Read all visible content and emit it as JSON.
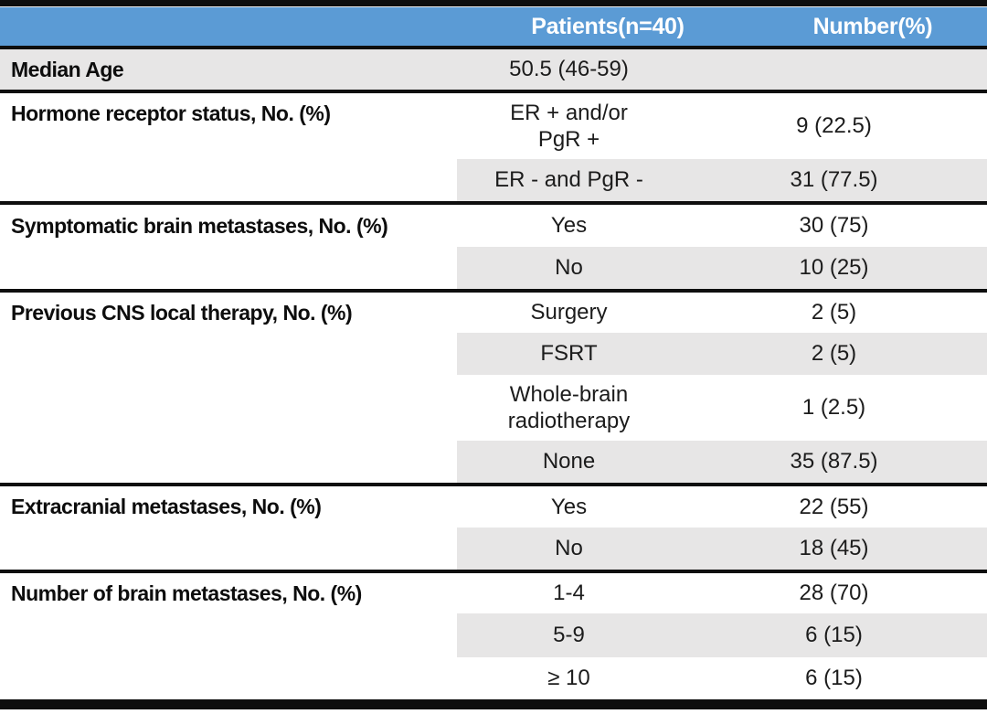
{
  "table": {
    "header": {
      "patients": "Patients(n=40)",
      "number": "Number(%)"
    },
    "rows": [
      {
        "label": "Median Age",
        "patients": "50.5 (46-59)",
        "number": ""
      },
      {
        "label": "Hormone receptor status, No. (%)",
        "patients": "ER + and/or\nPgR +",
        "number": "9 (22.5)"
      },
      {
        "label": "",
        "patients": "ER - and PgR -",
        "number": "31 (77.5)"
      },
      {
        "label": "Symptomatic brain metastases, No. (%)",
        "patients": "Yes",
        "number": "30 (75)"
      },
      {
        "label": "",
        "patients": "No",
        "number": "10 (25)"
      },
      {
        "label": "Previous CNS local therapy, No. (%)",
        "patients": "Surgery",
        "number": "2 (5)"
      },
      {
        "label": "",
        "patients": "FSRT",
        "number": "2 (5)"
      },
      {
        "label": "",
        "patients": "Whole-brain\nradiotherapy",
        "number": "1 (2.5)"
      },
      {
        "label": "",
        "patients": "None",
        "number": "35 (87.5)"
      },
      {
        "label": "Extracranial metastases, No. (%)",
        "patients": "Yes",
        "number": "22 (55)"
      },
      {
        "label": "",
        "patients": "No",
        "number": "18 (45)"
      },
      {
        "label": "Number of brain metastases, No. (%)",
        "patients": "1-4",
        "number": "28 (70)"
      },
      {
        "label": "",
        "patients": "5-9",
        "number": "6 (15)"
      },
      {
        "label": "",
        "patients": "≥ 10",
        "number": "6 (15)"
      }
    ]
  },
  "colors": {
    "header_bg": "#5b9bd5",
    "band_bg": "#e7e6e6",
    "line": "#0e0e0e"
  }
}
